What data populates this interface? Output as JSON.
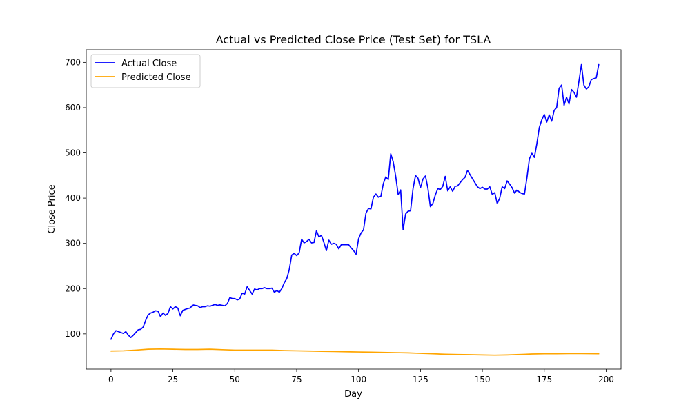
{
  "chart_data": {
    "type": "line",
    "title": "Actual vs Predicted Close Price (Test Set) for TSLA",
    "xlabel": "Day",
    "ylabel": "Close Price",
    "xlim": [
      -10,
      206
    ],
    "ylim": [
      22,
      728
    ],
    "x_ticks": [
      0,
      25,
      50,
      75,
      100,
      125,
      150,
      175,
      200
    ],
    "y_ticks": [
      100,
      200,
      300,
      400,
      500,
      600,
      700
    ],
    "grid": false,
    "legend_position": "top-left",
    "series": [
      {
        "name": "Actual Close",
        "color": "#0000ff",
        "points": [
          [
            0,
            88
          ],
          [
            1,
            100
          ],
          [
            2,
            107
          ],
          [
            3,
            105
          ],
          [
            4,
            103
          ],
          [
            5,
            101
          ],
          [
            6,
            105
          ],
          [
            7,
            97
          ],
          [
            8,
            92
          ],
          [
            9,
            97
          ],
          [
            10,
            103
          ],
          [
            11,
            109
          ],
          [
            12,
            110
          ],
          [
            13,
            115
          ],
          [
            14,
            130
          ],
          [
            15,
            142
          ],
          [
            16,
            146
          ],
          [
            17,
            148
          ],
          [
            18,
            151
          ],
          [
            19,
            150
          ],
          [
            20,
            138
          ],
          [
            21,
            146
          ],
          [
            22,
            141
          ],
          [
            23,
            145
          ],
          [
            24,
            160
          ],
          [
            25,
            155
          ],
          [
            26,
            160
          ],
          [
            27,
            157
          ],
          [
            28,
            140
          ],
          [
            29,
            152
          ],
          [
            30,
            154
          ],
          [
            31,
            156
          ],
          [
            32,
            157
          ],
          [
            33,
            164
          ],
          [
            34,
            163
          ],
          [
            35,
            162
          ],
          [
            36,
            158
          ],
          [
            37,
            160
          ],
          [
            38,
            160
          ],
          [
            39,
            162
          ],
          [
            40,
            161
          ],
          [
            41,
            163
          ],
          [
            42,
            165
          ],
          [
            43,
            163
          ],
          [
            44,
            164
          ],
          [
            45,
            163
          ],
          [
            46,
            162
          ],
          [
            47,
            167
          ],
          [
            48,
            180
          ],
          [
            49,
            178
          ],
          [
            50,
            178
          ],
          [
            51,
            175
          ],
          [
            52,
            177
          ],
          [
            53,
            190
          ],
          [
            54,
            188
          ],
          [
            55,
            204
          ],
          [
            56,
            196
          ],
          [
            57,
            188
          ],
          [
            58,
            199
          ],
          [
            59,
            197
          ],
          [
            60,
            200
          ],
          [
            61,
            200
          ],
          [
            62,
            202
          ],
          [
            63,
            200
          ],
          [
            64,
            200
          ],
          [
            65,
            201
          ],
          [
            66,
            192
          ],
          [
            67,
            196
          ],
          [
            68,
            192
          ],
          [
            69,
            200
          ],
          [
            70,
            213
          ],
          [
            71,
            222
          ],
          [
            72,
            242
          ],
          [
            73,
            274
          ],
          [
            74,
            278
          ],
          [
            75,
            273
          ],
          [
            76,
            279
          ],
          [
            77,
            309
          ],
          [
            78,
            301
          ],
          [
            79,
            304
          ],
          [
            80,
            309
          ],
          [
            81,
            301
          ],
          [
            82,
            302
          ],
          [
            83,
            328
          ],
          [
            84,
            314
          ],
          [
            85,
            318
          ],
          [
            86,
            302
          ],
          [
            87,
            284
          ],
          [
            88,
            307
          ],
          [
            89,
            298
          ],
          [
            90,
            300
          ],
          [
            91,
            298
          ],
          [
            92,
            288
          ],
          [
            93,
            297
          ],
          [
            94,
            297
          ],
          [
            95,
            297
          ],
          [
            96,
            297
          ],
          [
            97,
            290
          ],
          [
            98,
            284
          ],
          [
            99,
            276
          ],
          [
            100,
            310
          ],
          [
            101,
            323
          ],
          [
            102,
            330
          ],
          [
            103,
            367
          ],
          [
            104,
            377
          ],
          [
            105,
            376
          ],
          [
            106,
            402
          ],
          [
            107,
            409
          ],
          [
            108,
            402
          ],
          [
            109,
            404
          ],
          [
            110,
            432
          ],
          [
            111,
            447
          ],
          [
            112,
            441
          ],
          [
            113,
            498
          ],
          [
            114,
            480
          ],
          [
            115,
            448
          ],
          [
            116,
            408
          ],
          [
            117,
            418
          ],
          [
            118,
            330
          ],
          [
            119,
            365
          ],
          [
            120,
            371
          ],
          [
            121,
            372
          ],
          [
            122,
            421
          ],
          [
            123,
            450
          ],
          [
            124,
            444
          ],
          [
            125,
            423
          ],
          [
            126,
            442
          ],
          [
            127,
            449
          ],
          [
            128,
            422
          ],
          [
            129,
            381
          ],
          [
            130,
            388
          ],
          [
            131,
            407
          ],
          [
            132,
            421
          ],
          [
            133,
            419
          ],
          [
            134,
            426
          ],
          [
            135,
            448
          ],
          [
            136,
            416
          ],
          [
            137,
            425
          ],
          [
            138,
            415
          ],
          [
            139,
            426
          ],
          [
            140,
            427
          ],
          [
            141,
            434
          ],
          [
            142,
            441
          ],
          [
            143,
            446
          ],
          [
            144,
            461
          ],
          [
            145,
            452
          ],
          [
            146,
            443
          ],
          [
            147,
            434
          ],
          [
            148,
            425
          ],
          [
            149,
            421
          ],
          [
            150,
            424
          ],
          [
            151,
            420
          ],
          [
            152,
            420
          ],
          [
            153,
            425
          ],
          [
            154,
            408
          ],
          [
            155,
            412
          ],
          [
            156,
            388
          ],
          [
            157,
            400
          ],
          [
            158,
            425
          ],
          [
            159,
            421
          ],
          [
            160,
            438
          ],
          [
            161,
            431
          ],
          [
            162,
            423
          ],
          [
            163,
            411
          ],
          [
            164,
            418
          ],
          [
            165,
            413
          ],
          [
            166,
            410
          ],
          [
            167,
            409
          ],
          [
            168,
            445
          ],
          [
            169,
            487
          ],
          [
            170,
            499
          ],
          [
            171,
            490
          ],
          [
            172,
            520
          ],
          [
            173,
            556
          ],
          [
            174,
            573
          ],
          [
            175,
            585
          ],
          [
            176,
            568
          ],
          [
            177,
            584
          ],
          [
            178,
            570
          ],
          [
            179,
            594
          ],
          [
            180,
            600
          ],
          [
            181,
            643
          ],
          [
            182,
            650
          ],
          [
            183,
            605
          ],
          [
            184,
            623
          ],
          [
            185,
            608
          ],
          [
            186,
            640
          ],
          [
            187,
            634
          ],
          [
            188,
            623
          ],
          [
            189,
            658
          ],
          [
            190,
            695
          ],
          [
            191,
            650
          ],
          [
            192,
            641
          ],
          [
            193,
            646
          ],
          [
            194,
            662
          ],
          [
            195,
            664
          ],
          [
            196,
            666
          ],
          [
            197,
            695
          ]
        ]
      },
      {
        "name": "Predicted Close",
        "color": "#ffa500",
        "points": [
          [
            0,
            62
          ],
          [
            5,
            62.5
          ],
          [
            10,
            64
          ],
          [
            15,
            66
          ],
          [
            20,
            66.5
          ],
          [
            25,
            66
          ],
          [
            30,
            65.5
          ],
          [
            35,
            65.5
          ],
          [
            40,
            66
          ],
          [
            45,
            65
          ],
          [
            50,
            64
          ],
          [
            55,
            64
          ],
          [
            60,
            64
          ],
          [
            65,
            64
          ],
          [
            70,
            63
          ],
          [
            75,
            62.5
          ],
          [
            80,
            62
          ],
          [
            85,
            61.5
          ],
          [
            90,
            61
          ],
          [
            95,
            60.5
          ],
          [
            100,
            60
          ],
          [
            105,
            59.5
          ],
          [
            110,
            59
          ],
          [
            115,
            58.5
          ],
          [
            120,
            58
          ],
          [
            125,
            57
          ],
          [
            130,
            56
          ],
          [
            135,
            55
          ],
          [
            140,
            54.5
          ],
          [
            145,
            54
          ],
          [
            150,
            53.5
          ],
          [
            155,
            53
          ],
          [
            160,
            53.5
          ],
          [
            165,
            54.5
          ],
          [
            170,
            55.5
          ],
          [
            175,
            56
          ],
          [
            180,
            56
          ],
          [
            185,
            56.5
          ],
          [
            190,
            56.5
          ],
          [
            197,
            56
          ]
        ]
      }
    ]
  }
}
